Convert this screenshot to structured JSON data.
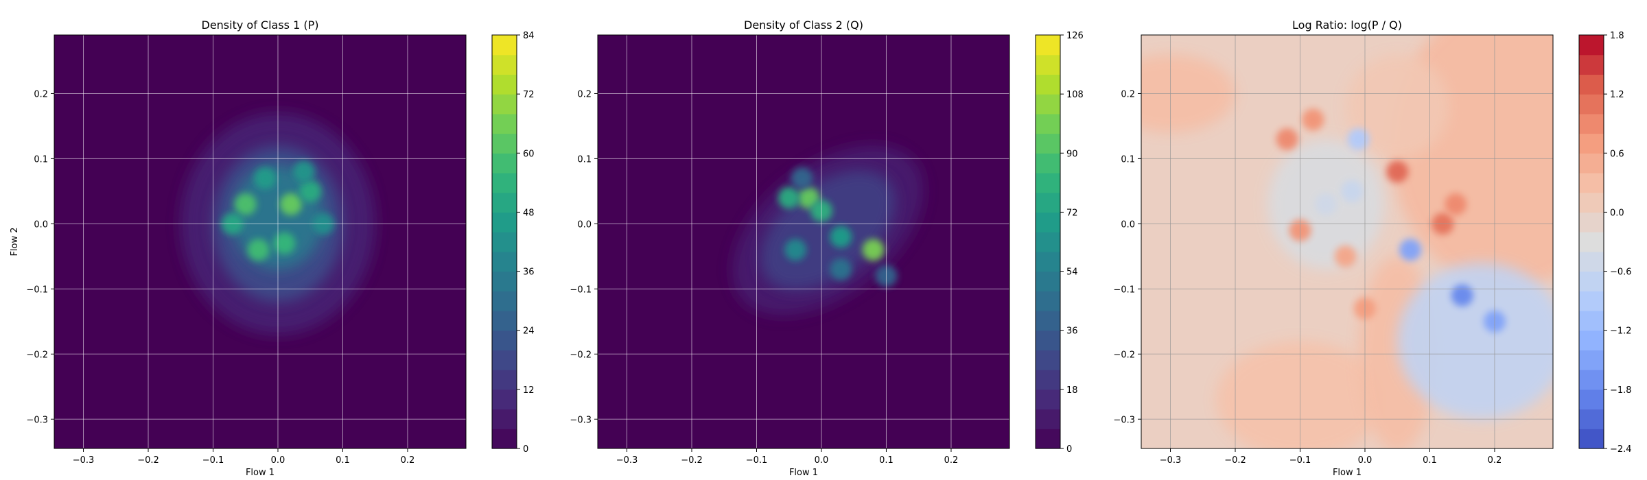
{
  "chart_data": [
    {
      "type": "heatmap",
      "title": "Density of Class 1 (P)",
      "xlabel": "Flow 1",
      "ylabel": "Flow 2",
      "xlim": [
        -0.345,
        0.29
      ],
      "ylim": [
        -0.345,
        0.29
      ],
      "x_ticks": [
        -0.3,
        -0.2,
        -0.1,
        0.0,
        0.1,
        0.2
      ],
      "y_ticks": [
        -0.3,
        -0.2,
        -0.1,
        0.0,
        0.1,
        0.2
      ],
      "x_tick_labels": [
        "−0.3",
        "−0.2",
        "−0.1",
        "0.0",
        "0.1",
        "0.2"
      ],
      "y_tick_labels": [
        "−0.3",
        "−0.2",
        "−0.1",
        "0.0",
        "0.1",
        "0.2"
      ],
      "grid": true,
      "colormap": "viridis",
      "colorbar": {
        "min": 0,
        "max": 84,
        "ticks": [
          0,
          12,
          24,
          36,
          48,
          60,
          72,
          84
        ],
        "tick_labels": [
          "0",
          "12",
          "24",
          "36",
          "48",
          "60",
          "72",
          "84"
        ],
        "levels": 21
      },
      "features": [
        {
          "kind": "region",
          "cx": 0.0,
          "cy": 0.0,
          "rx": 0.15,
          "ry": 0.17,
          "rotate": 0,
          "value": 8
        },
        {
          "kind": "region",
          "cx": 0.0,
          "cy": 0.0,
          "rx": 0.1,
          "ry": 0.12,
          "rotate": 0,
          "value": 20
        },
        {
          "kind": "region",
          "cx": 0.0,
          "cy": 0.01,
          "rx": 0.07,
          "ry": 0.08,
          "rotate": 0,
          "value": 34
        },
        {
          "kind": "blob",
          "cx": -0.05,
          "cy": 0.03,
          "value": 60
        },
        {
          "kind": "blob",
          "cx": 0.02,
          "cy": 0.03,
          "value": 64
        },
        {
          "kind": "blob",
          "cx": 0.05,
          "cy": 0.05,
          "value": 52
        },
        {
          "kind": "blob",
          "cx": -0.03,
          "cy": -0.04,
          "value": 58
        },
        {
          "kind": "blob",
          "cx": 0.01,
          "cy": -0.03,
          "value": 56
        },
        {
          "kind": "blob",
          "cx": -0.02,
          "cy": 0.07,
          "value": 46
        },
        {
          "kind": "blob",
          "cx": 0.04,
          "cy": 0.08,
          "value": 44
        },
        {
          "kind": "blob",
          "cx": -0.07,
          "cy": 0.0,
          "value": 50
        },
        {
          "kind": "blob",
          "cx": 0.07,
          "cy": 0.0,
          "value": 42
        }
      ]
    },
    {
      "type": "heatmap",
      "title": "Density of Class 2 (Q)",
      "xlabel": "Flow 1",
      "ylabel": "",
      "xlim": [
        -0.345,
        0.29
      ],
      "ylim": [
        -0.345,
        0.29
      ],
      "x_ticks": [
        -0.3,
        -0.2,
        -0.1,
        0.0,
        0.1,
        0.2
      ],
      "y_ticks": [
        -0.3,
        -0.2,
        -0.1,
        0.0,
        0.1,
        0.2
      ],
      "x_tick_labels": [
        "−0.3",
        "−0.2",
        "−0.1",
        "0.0",
        "0.1",
        "0.2"
      ],
      "y_tick_labels": [
        "−0.3",
        "−0.2",
        "−0.1",
        "0.0",
        "0.1",
        "0.2"
      ],
      "grid": true,
      "colormap": "viridis",
      "colorbar": {
        "min": 0,
        "max": 126,
        "ticks": [
          0,
          18,
          36,
          54,
          72,
          90,
          108,
          126
        ],
        "tick_labels": [
          "0",
          "18",
          "36",
          "54",
          "72",
          "90",
          "108",
          "126"
        ],
        "levels": 21
      },
      "features": [
        {
          "kind": "region",
          "cx": 0.01,
          "cy": -0.01,
          "rx": 0.17,
          "ry": 0.1,
          "rotate": 38,
          "value": 10
        },
        {
          "kind": "region",
          "cx": 0.01,
          "cy": -0.01,
          "rx": 0.12,
          "ry": 0.07,
          "rotate": 38,
          "value": 24
        },
        {
          "kind": "blob",
          "cx": -0.02,
          "cy": 0.04,
          "value": 96
        },
        {
          "kind": "blob",
          "cx": -0.05,
          "cy": 0.04,
          "value": 78
        },
        {
          "kind": "blob",
          "cx": 0.0,
          "cy": 0.02,
          "value": 80
        },
        {
          "kind": "blob",
          "cx": 0.03,
          "cy": -0.02,
          "value": 70
        },
        {
          "kind": "blob",
          "cx": 0.08,
          "cy": -0.04,
          "value": 100
        },
        {
          "kind": "blob",
          "cx": -0.04,
          "cy": -0.04,
          "value": 60
        },
        {
          "kind": "blob",
          "cx": 0.03,
          "cy": -0.07,
          "value": 48
        },
        {
          "kind": "blob",
          "cx": -0.03,
          "cy": 0.07,
          "value": 42
        },
        {
          "kind": "blob",
          "cx": 0.1,
          "cy": -0.08,
          "value": 40
        }
      ]
    },
    {
      "type": "heatmap",
      "title": "Log Ratio: log(P / Q)",
      "xlabel": "Flow 1",
      "ylabel": "",
      "xlim": [
        -0.345,
        0.29
      ],
      "ylim": [
        -0.345,
        0.29
      ],
      "x_ticks": [
        -0.3,
        -0.2,
        -0.1,
        0.0,
        0.1,
        0.2
      ],
      "y_ticks": [
        -0.3,
        -0.2,
        -0.1,
        0.0,
        0.1,
        0.2
      ],
      "x_tick_labels": [
        "−0.3",
        "−0.2",
        "−0.1",
        "0.0",
        "0.1",
        "0.2"
      ],
      "y_tick_labels": [
        "−0.3",
        "−0.2",
        "−0.1",
        "0.0",
        "0.1",
        "0.2"
      ],
      "grid": true,
      "colormap": "coolwarm",
      "colorbar": {
        "min": -2.4,
        "max": 1.8,
        "ticks": [
          -2.4,
          -1.8,
          -1.2,
          -0.6,
          0.0,
          0.6,
          1.2,
          1.8
        ],
        "tick_labels": [
          "−2.4",
          "−1.8",
          "−1.2",
          "−0.6",
          "0.0",
          "0.6",
          "1.2",
          "1.8"
        ],
        "levels": 21
      },
      "features": [
        {
          "kind": "background",
          "value": 0.0
        },
        {
          "kind": "region",
          "cx": 0.22,
          "cy": 0.12,
          "rx": 0.18,
          "ry": 0.22,
          "rotate": 0,
          "value": 0.35
        },
        {
          "kind": "region",
          "cx": -0.1,
          "cy": -0.27,
          "rx": 0.13,
          "ry": 0.09,
          "rotate": 0,
          "value": 0.25
        },
        {
          "kind": "region",
          "cx": 0.05,
          "cy": -0.2,
          "rx": 0.06,
          "ry": 0.15,
          "rotate": 0,
          "value": 0.3
        },
        {
          "kind": "region",
          "cx": 0.05,
          "cy": 0.18,
          "rx": 0.08,
          "ry": 0.08,
          "rotate": 0,
          "value": 0.15
        },
        {
          "kind": "region",
          "cx": -0.3,
          "cy": 0.2,
          "rx": 0.1,
          "ry": 0.06,
          "rotate": 0,
          "value": 0.3
        },
        {
          "kind": "region",
          "cx": -0.06,
          "cy": 0.03,
          "rx": 0.09,
          "ry": 0.1,
          "rotate": 0,
          "value": -0.35
        },
        {
          "kind": "region",
          "cx": 0.18,
          "cy": -0.18,
          "rx": 0.13,
          "ry": 0.12,
          "rotate": 0,
          "value": -0.7
        },
        {
          "kind": "blob",
          "cx": 0.15,
          "cy": -0.11,
          "value": -1.8
        },
        {
          "kind": "blob",
          "cx": 0.2,
          "cy": -0.15,
          "value": -1.5
        },
        {
          "kind": "blob",
          "cx": 0.07,
          "cy": -0.04,
          "value": -1.5
        },
        {
          "kind": "blob",
          "cx": -0.01,
          "cy": 0.13,
          "value": -0.9
        },
        {
          "kind": "blob",
          "cx": -0.02,
          "cy": 0.05,
          "value": -0.6
        },
        {
          "kind": "blob",
          "cx": -0.06,
          "cy": 0.03,
          "value": -0.5
        },
        {
          "kind": "blob",
          "cx": -0.12,
          "cy": 0.13,
          "value": 0.9
        },
        {
          "kind": "blob",
          "cx": -0.08,
          "cy": 0.16,
          "value": 0.8
        },
        {
          "kind": "blob",
          "cx": 0.05,
          "cy": 0.08,
          "value": 1.2
        },
        {
          "kind": "blob",
          "cx": 0.12,
          "cy": 0.0,
          "value": 1.1
        },
        {
          "kind": "blob",
          "cx": 0.14,
          "cy": 0.03,
          "value": 0.9
        },
        {
          "kind": "blob",
          "cx": -0.1,
          "cy": -0.01,
          "value": 0.8
        },
        {
          "kind": "blob",
          "cx": 0.0,
          "cy": -0.13,
          "value": 0.7
        },
        {
          "kind": "blob",
          "cx": -0.03,
          "cy": -0.05,
          "value": 0.6
        }
      ]
    }
  ]
}
